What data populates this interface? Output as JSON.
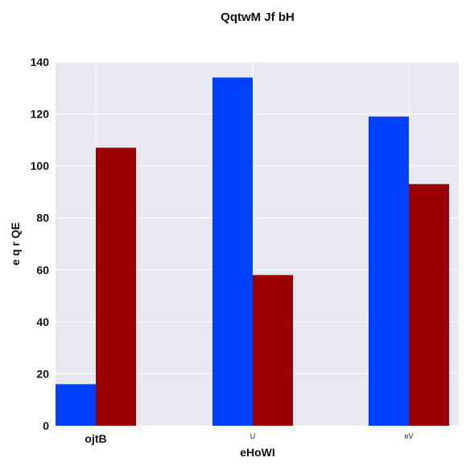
{
  "chart_data": {
    "type": "bar",
    "title": "QqtwM Jf bH",
    "xlabel": "eHoWI",
    "ylabel": "e q r QE",
    "categories": [
      "ojtB",
      "U",
      "eV"
    ],
    "series": [
      {
        "values": [
          16,
          134,
          119
        ],
        "color": "#0040ff"
      },
      {
        "values": [
          107,
          58,
          93
        ],
        "color": "#990000"
      }
    ],
    "ylim": [
      0,
      140
    ],
    "yticks": [
      0,
      20,
      40,
      60,
      80,
      100,
      120,
      140
    ],
    "grid": true,
    "background": "#e8e8f0"
  }
}
